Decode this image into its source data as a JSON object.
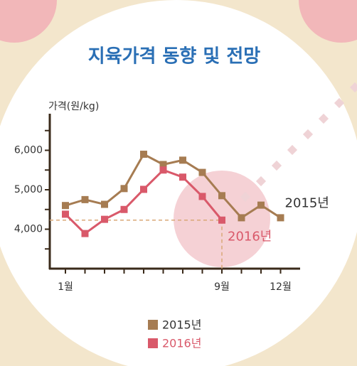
{
  "chart_data": {
    "type": "line",
    "title": "지육가격 동향 및 전망",
    "y_axis_label": "가격(원/kg)",
    "categories": [
      "1월",
      null,
      null,
      null,
      null,
      null,
      null,
      null,
      "9월",
      null,
      null,
      "12월"
    ],
    "series": [
      {
        "name": "2015년",
        "color": "#a67c52",
        "values": [
          4600,
          4750,
          4630,
          5030,
          5900,
          5640,
          5750,
          5440,
          4850,
          4290,
          4610,
          4290
        ]
      },
      {
        "name": "2016년",
        "color": "#d9596a",
        "values": [
          4380,
          3890,
          4250,
          4500,
          5010,
          5500,
          5320,
          4830,
          4230,
          null,
          null,
          null
        ]
      }
    ],
    "ylim": [
      3000,
      7000
    ],
    "yticks": [
      {
        "value": 4000,
        "label": "4,000"
      },
      {
        "value": 5000,
        "label": "5,000"
      },
      {
        "value": 6000,
        "label": "6,000"
      }
    ],
    "yminor": [
      3500,
      4500,
      5500,
      6500
    ],
    "grid": false,
    "legend": "bottom"
  }
}
